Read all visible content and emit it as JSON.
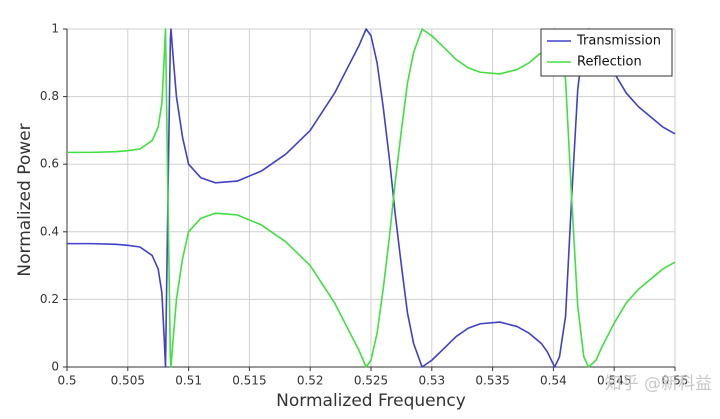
{
  "chart_data": {
    "type": "line",
    "x_label": "Normalized Frequency",
    "y_label": "Normalized Power",
    "watermark": "知乎 @新科益",
    "x": [
      0.5,
      0.502,
      0.504,
      0.505,
      0.506,
      0.507,
      0.5075,
      0.5078,
      0.508,
      0.5081,
      0.5083,
      0.5085,
      0.50855,
      0.5087,
      0.509,
      0.5095,
      0.51,
      0.511,
      0.5122,
      0.514,
      0.516,
      0.518,
      0.52,
      0.522,
      0.523,
      0.524,
      0.5246,
      0.525,
      0.5255,
      0.526,
      0.5265,
      0.527,
      0.5275,
      0.528,
      0.5285,
      0.5292,
      0.53,
      0.531,
      0.532,
      0.533,
      0.534,
      0.5356,
      0.537,
      0.538,
      0.539,
      0.5395,
      0.5401,
      0.5405,
      0.541,
      0.5415,
      0.542,
      0.5425,
      0.5429,
      0.5435,
      0.544,
      0.545,
      0.546,
      0.547,
      0.548,
      0.549,
      0.55
    ],
    "series": [
      {
        "name": "Transmission",
        "color": "#4040c8",
        "values": [
          0.365,
          0.365,
          0.363,
          0.36,
          0.355,
          0.33,
          0.29,
          0.22,
          0.08,
          0,
          0.5,
          0.97,
          1,
          0.93,
          0.8,
          0.68,
          0.6,
          0.56,
          0.545,
          0.55,
          0.58,
          0.63,
          0.7,
          0.81,
          0.88,
          0.95,
          1,
          0.98,
          0.9,
          0.77,
          0.62,
          0.45,
          0.3,
          0.16,
          0.07,
          0,
          0.02,
          0.055,
          0.09,
          0.115,
          0.128,
          0.133,
          0.12,
          0.1,
          0.07,
          0.045,
          0,
          0.03,
          0.15,
          0.5,
          0.82,
          0.97,
          1,
          0.98,
          0.94,
          0.87,
          0.81,
          0.77,
          0.74,
          0.71,
          0.69
        ]
      },
      {
        "name": "Reflection",
        "color": "#40e040",
        "values": [
          0.635,
          0.635,
          0.637,
          0.64,
          0.645,
          0.67,
          0.71,
          0.78,
          0.92,
          1,
          0.5,
          0.03,
          0,
          0.07,
          0.2,
          0.32,
          0.4,
          0.44,
          0.455,
          0.45,
          0.42,
          0.37,
          0.3,
          0.19,
          0.12,
          0.05,
          0,
          0.02,
          0.1,
          0.23,
          0.38,
          0.55,
          0.7,
          0.84,
          0.93,
          1,
          0.98,
          0.945,
          0.91,
          0.885,
          0.872,
          0.867,
          0.88,
          0.9,
          0.93,
          0.955,
          1,
          0.97,
          0.85,
          0.5,
          0.18,
          0.03,
          0,
          0.02,
          0.06,
          0.13,
          0.19,
          0.23,
          0.26,
          0.29,
          0.31
        ]
      }
    ],
    "xlim": [
      0.5,
      0.55
    ],
    "xticks": [
      0.5,
      0.505,
      0.51,
      0.515,
      0.52,
      0.525,
      0.53,
      0.535,
      0.54,
      0.545,
      0.55
    ],
    "ylim": [
      0,
      1
    ],
    "yticks": [
      0,
      0.2,
      0.4,
      0.6,
      0.8,
      1
    ],
    "grid": true,
    "legend": "top-right"
  }
}
